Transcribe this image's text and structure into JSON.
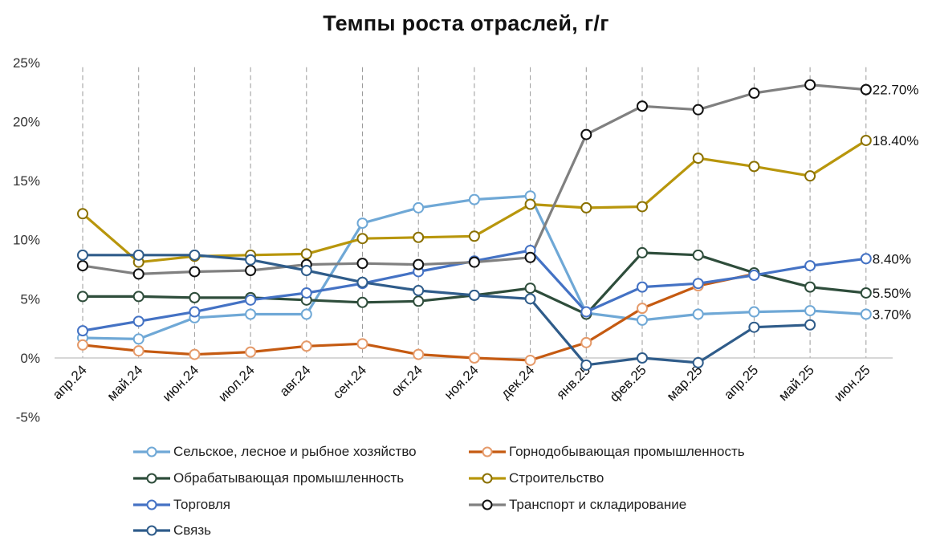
{
  "chart_data": {
    "type": "line",
    "title": "Темпы роста отраслей, г/г",
    "xlabel": "",
    "ylabel": "",
    "categories": [
      "апр.24",
      "май.24",
      "июн.24",
      "июл.24",
      "авг.24",
      "сен.24",
      "окт.24",
      "ноя.24",
      "дек.24",
      "янв.25",
      "фев.25",
      "мар.25",
      "апр.25",
      "май.25",
      "июн.25"
    ],
    "y_ticks": [
      "-5%",
      "0%",
      "5%",
      "10%",
      "15%",
      "20%",
      "25%"
    ],
    "ylim": [
      -5,
      25
    ],
    "grid": "vertical dashed lines at each category",
    "legend_position": "bottom",
    "series": [
      {
        "name": "Сельское, лесное и рыбное хозяйство",
        "color": "#6fa8d6",
        "marker_edge": "#6fa8d6",
        "values": [
          1.7,
          1.6,
          3.4,
          3.7,
          3.7,
          11.4,
          12.7,
          13.4,
          13.7,
          3.8,
          3.2,
          3.7,
          3.9,
          4.0,
          3.7
        ],
        "end_label": "3.70%"
      },
      {
        "name": "Горнодобывающая промышленность",
        "color": "#c55a11",
        "marker_edge": "#e59a6a",
        "values": [
          1.1,
          0.6,
          0.3,
          0.5,
          1.0,
          1.2,
          0.3,
          0.0,
          -0.2,
          1.3,
          4.2,
          6.1,
          7.1,
          null,
          null
        ],
        "end_label": ""
      },
      {
        "name": "Обрабатывающая промышленность",
        "color": "#2e4d3b",
        "marker_edge": "#2e4d3b",
        "values": [
          5.2,
          5.2,
          5.1,
          5.1,
          4.9,
          4.7,
          4.8,
          5.3,
          5.9,
          3.7,
          8.9,
          8.7,
          7.2,
          6.0,
          5.5
        ],
        "end_label": "5.50%"
      },
      {
        "name": "Строительство",
        "color": "#b8960c",
        "marker_edge": "#8a7000",
        "values": [
          12.2,
          8.1,
          8.6,
          8.7,
          8.8,
          10.1,
          10.2,
          10.3,
          13.0,
          12.7,
          12.8,
          16.9,
          16.2,
          15.4,
          18.4
        ],
        "end_label": "18.40%"
      },
      {
        "name": "Торговля",
        "color": "#4472c4",
        "marker_edge": "#4472c4",
        "values": [
          2.3,
          3.1,
          3.9,
          4.9,
          5.5,
          6.3,
          7.3,
          8.2,
          9.1,
          3.9,
          6.0,
          6.3,
          7.0,
          7.8,
          8.4
        ],
        "end_label": "8.40%"
      },
      {
        "name": "Транспорт и складирование",
        "color": "#808080",
        "marker_edge": "#111111",
        "values": [
          7.8,
          7.1,
          7.3,
          7.4,
          7.9,
          8.0,
          7.9,
          8.1,
          8.5,
          18.9,
          21.3,
          21.0,
          22.4,
          23.1,
          22.7
        ],
        "end_label": "22.70%"
      },
      {
        "name": "Связь",
        "color": "#2f5c8a",
        "marker_edge": "#2f5c8a",
        "values": [
          8.7,
          8.7,
          8.7,
          8.3,
          7.4,
          6.4,
          5.7,
          5.3,
          5.0,
          -0.6,
          0.0,
          -0.4,
          2.6,
          2.8,
          null
        ],
        "end_label": ""
      }
    ]
  }
}
